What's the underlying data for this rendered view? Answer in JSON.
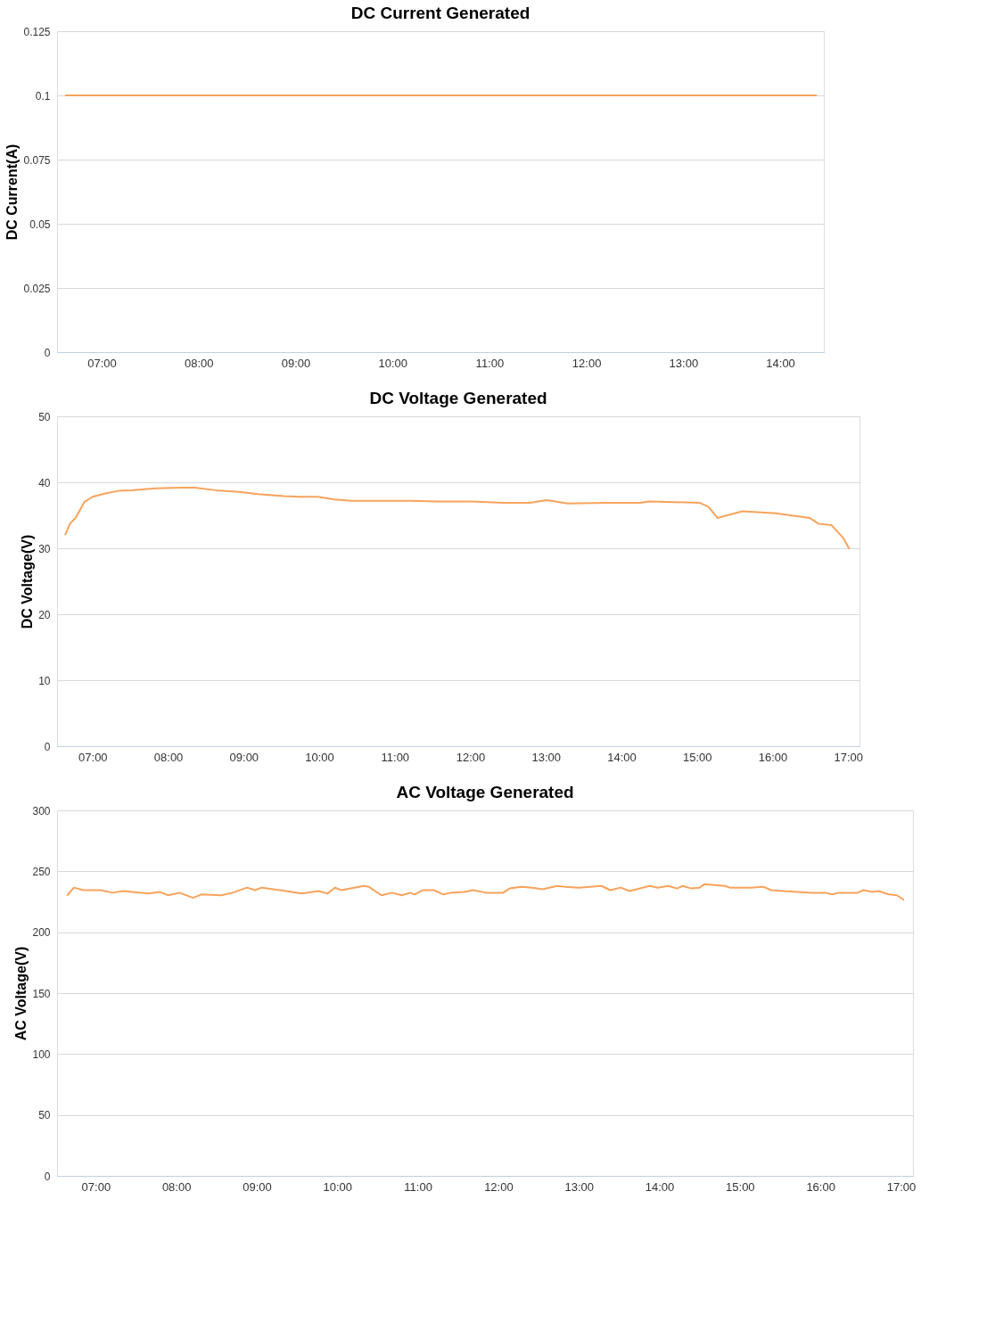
{
  "chart_data": [
    {
      "type": "line",
      "title": "DC Current Generated",
      "ylabel": "DC Current(A)",
      "xlim": [
        6.54,
        14.45
      ],
      "ylim": [
        0,
        0.125
      ],
      "yticks": [
        0,
        0.025,
        0.05,
        0.075,
        0.1,
        0.125
      ],
      "xticks": [
        {
          "value": 7,
          "label": "07:00"
        },
        {
          "value": 8,
          "label": "08:00"
        },
        {
          "value": 9,
          "label": "09:00"
        },
        {
          "value": 10,
          "label": "10:00"
        },
        {
          "value": 11,
          "label": "11:00"
        },
        {
          "value": 12,
          "label": "12:00"
        },
        {
          "value": 13,
          "label": "13:00"
        },
        {
          "value": 14,
          "label": "14:00"
        }
      ],
      "grid": "y",
      "marker": "none",
      "series": [
        {
          "color": "#f7a35c",
          "x": [
            6.63,
            14.37
          ],
          "values": [
            0.1,
            0.1
          ]
        }
      ]
    },
    {
      "type": "line",
      "title": "DC Voltage Generated",
      "ylabel": "DC Voltage(V)",
      "xlim": [
        6.53,
        17.15
      ],
      "ylim": [
        0,
        50
      ],
      "yticks": [
        0,
        10,
        20,
        30,
        40,
        50
      ],
      "xticks": [
        {
          "value": 7,
          "label": "07:00"
        },
        {
          "value": 8,
          "label": "08:00"
        },
        {
          "value": 9,
          "label": "09:00"
        },
        {
          "value": 10,
          "label": "10:00"
        },
        {
          "value": 11,
          "label": "11:00"
        },
        {
          "value": 12,
          "label": "12:00"
        },
        {
          "value": 13,
          "label": "13:00"
        },
        {
          "value": 14,
          "label": "14:00"
        },
        {
          "value": 15,
          "label": "15:00"
        },
        {
          "value": 16,
          "label": "16:00"
        },
        {
          "value": 17,
          "label": "17:00"
        }
      ],
      "grid": "y",
      "marker": "none",
      "series": [
        {
          "color": "#f7a35c",
          "x": [
            6.64,
            6.7,
            6.78,
            6.89,
            7.0,
            7.17,
            7.34,
            7.51,
            7.84,
            8.18,
            8.35,
            8.63,
            8.97,
            9.19,
            9.53,
            9.75,
            9.98,
            10.2,
            10.43,
            10.88,
            11.21,
            11.55,
            12.0,
            12.45,
            12.79,
            13.01,
            13.29,
            13.8,
            14.25,
            14.36,
            14.7,
            15.03,
            15.15,
            15.27,
            15.6,
            16.04,
            16.49,
            16.61,
            16.78,
            16.94,
            17.01
          ],
          "values": [
            32.1,
            33.7,
            34.7,
            37.0,
            37.8,
            38.3,
            38.7,
            38.8,
            39.1,
            39.2,
            39.2,
            38.8,
            38.5,
            38.2,
            37.9,
            37.8,
            37.8,
            37.4,
            37.2,
            37.2,
            37.2,
            37.1,
            37.1,
            36.9,
            36.9,
            37.3,
            36.8,
            36.9,
            36.9,
            37.1,
            37.0,
            36.9,
            36.3,
            34.6,
            35.6,
            35.3,
            34.6,
            33.7,
            33.5,
            31.5,
            30.0
          ]
        }
      ]
    },
    {
      "type": "line",
      "title": "AC Voltage Generated",
      "ylabel": "AC Voltage(V)",
      "xlim": [
        6.52,
        17.15
      ],
      "ylim": [
        0,
        300
      ],
      "yticks": [
        0,
        50,
        100,
        150,
        200,
        250,
        300
      ],
      "xticks": [
        {
          "value": 7,
          "label": "07:00"
        },
        {
          "value": 8,
          "label": "08:00"
        },
        {
          "value": 9,
          "label": "09:00"
        },
        {
          "value": 10,
          "label": "10:00"
        },
        {
          "value": 11,
          "label": "11:00"
        },
        {
          "value": 12,
          "label": "12:00"
        },
        {
          "value": 13,
          "label": "13:00"
        },
        {
          "value": 14,
          "label": "14:00"
        },
        {
          "value": 15,
          "label": "15:00"
        },
        {
          "value": 16,
          "label": "16:00"
        },
        {
          "value": 17,
          "label": "17:00"
        }
      ],
      "grid": "y",
      "marker": "none",
      "series": [
        {
          "color": "#f7a35c",
          "x": [
            6.65,
            6.73,
            6.85,
            7.06,
            7.21,
            7.34,
            7.66,
            7.79,
            7.9,
            8.04,
            8.21,
            8.31,
            8.56,
            8.7,
            8.88,
            8.98,
            9.06,
            9.29,
            9.56,
            9.77,
            9.88,
            9.97,
            10.05,
            10.33,
            10.39,
            10.55,
            10.68,
            10.8,
            10.91,
            10.96,
            11.06,
            11.2,
            11.32,
            11.41,
            11.58,
            11.69,
            11.85,
            12.06,
            12.14,
            12.29,
            12.42,
            12.55,
            12.73,
            12.83,
            13.0,
            13.28,
            13.39,
            13.52,
            13.63,
            13.88,
            13.98,
            14.11,
            14.22,
            14.29,
            14.4,
            14.5,
            14.56,
            14.81,
            14.88,
            15.13,
            15.29,
            15.39,
            15.54,
            15.89,
            16.06,
            16.15,
            16.23,
            16.46,
            16.54,
            16.64,
            16.72,
            16.85,
            16.95,
            17.03
          ],
          "values": [
            230.5,
            236.6,
            234.5,
            234.5,
            232.4,
            233.8,
            231.7,
            233.1,
            230.3,
            232.4,
            228.2,
            231.0,
            230.3,
            232.4,
            236.6,
            234.5,
            236.6,
            234.5,
            231.7,
            233.8,
            231.7,
            236.6,
            234.5,
            238.0,
            237.3,
            230.3,
            232.4,
            230.3,
            232.4,
            231.0,
            234.5,
            234.5,
            231.0,
            232.4,
            233.1,
            234.5,
            232.4,
            232.4,
            235.9,
            237.3,
            236.6,
            235.2,
            238.0,
            237.3,
            236.6,
            238.0,
            234.5,
            236.6,
            233.8,
            238.0,
            236.6,
            238.0,
            235.9,
            238.0,
            235.9,
            236.6,
            239.4,
            238.0,
            236.6,
            236.6,
            237.3,
            234.5,
            233.8,
            232.4,
            232.4,
            231.0,
            232.4,
            232.4,
            234.5,
            233.1,
            233.8,
            231.0,
            230.3,
            226.8
          ]
        }
      ]
    }
  ]
}
